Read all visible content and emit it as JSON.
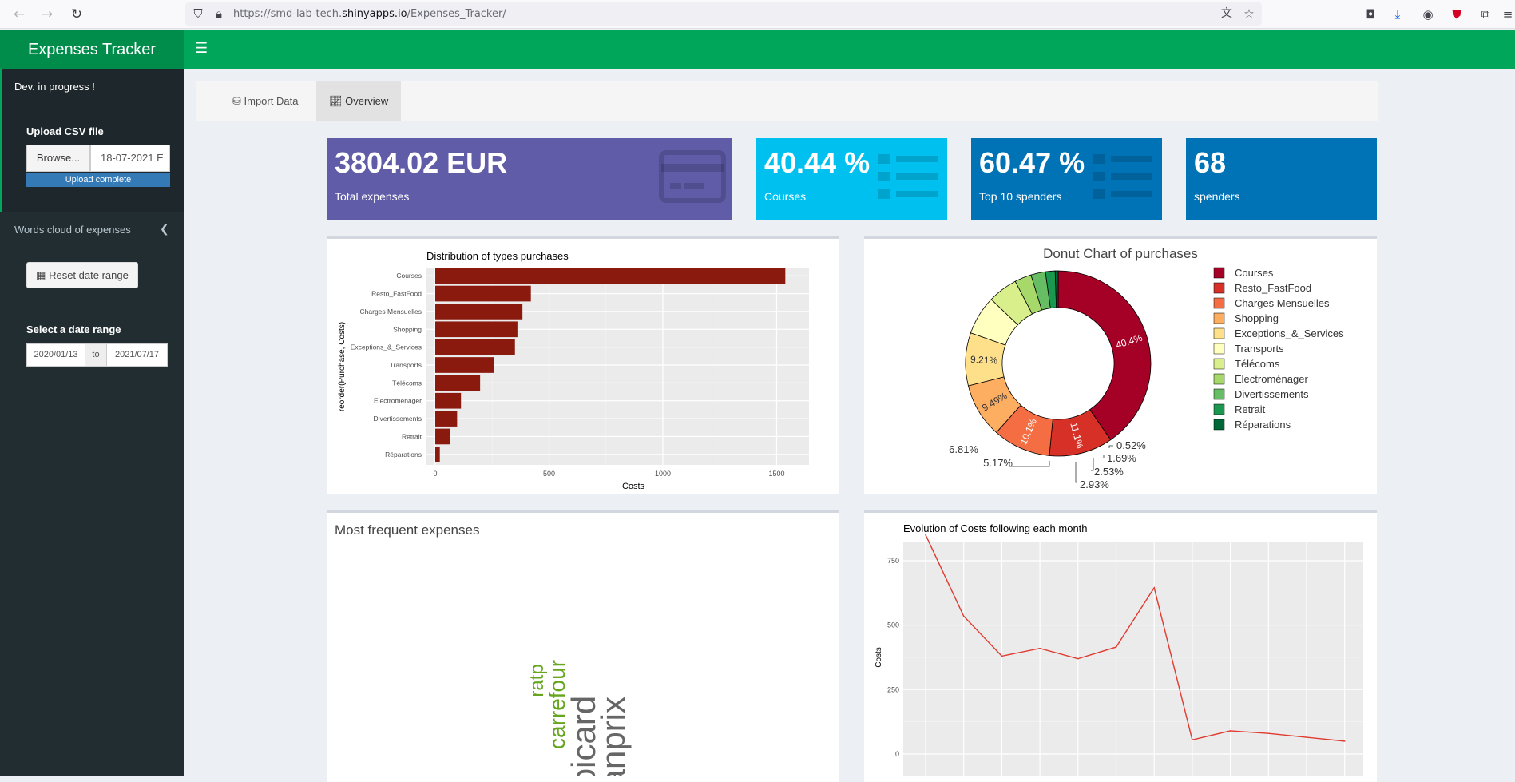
{
  "browser": {
    "url_prefix": "https://smd-lab-tech.",
    "url_domain": "shinyapps.io",
    "url_path": "/Expenses_Tracker/"
  },
  "app": {
    "title": "Expenses Tracker"
  },
  "sidebar": {
    "dev_text": "Dev. in progress !",
    "upload_label": "Upload CSV file",
    "browse_label": "Browse...",
    "file_name": "18-07-2021 E",
    "upload_status": "Upload complete",
    "wordcloud_menu": "Words cloud of expenses",
    "reset_label": "Reset date range",
    "date_range_label": "Select a date range",
    "date_start": "2020/01/13",
    "date_to": "to",
    "date_end": "2021/07/17"
  },
  "tabs": [
    {
      "label": "Import Data"
    },
    {
      "label": "Overview"
    }
  ],
  "value_boxes": [
    {
      "value": "3804.02 EUR",
      "label": "Total expenses",
      "color": "#605ca8"
    },
    {
      "value": "40.44 %",
      "label": "Courses",
      "color": "#00c0ef"
    },
    {
      "value": "60.47 %",
      "label": "Top 10 spenders",
      "color": "#0073b7"
    },
    {
      "value": "68",
      "label": "spenders",
      "color": "#0073b7"
    }
  ],
  "charts": {
    "bar": {
      "type": "bar",
      "title": "Distribution of types purchases",
      "xlabel": "Costs",
      "ylabel": "reorder(Purchase, Costs)",
      "categories": [
        "Courses",
        "Resto_FastFood",
        "Charges Mensuelles",
        "Shopping",
        "Exceptions_&_Services",
        "Transports",
        "Télécoms",
        "Electroménager",
        "Divertissements",
        "Retrait",
        "Réparations"
      ],
      "values": [
        1538,
        420,
        383,
        361,
        350,
        259,
        197,
        113,
        96,
        64,
        20
      ],
      "xlim": [
        0,
        1600
      ],
      "xticks": [
        "0",
        "500",
        "1000",
        "1500"
      ],
      "color": "#8b1a0e"
    },
    "donut": {
      "type": "pie",
      "title": "Donut Chart of purchases",
      "labels": [
        "Courses",
        "Resto_FastFood",
        "Charges Mensuelles",
        "Shopping",
        "Exceptions_&_Services",
        "Transports",
        "Télécoms",
        "Electroménager",
        "Divertissements",
        "Retrait",
        "Réparations"
      ],
      "values": [
        40.4,
        11.1,
        10.1,
        9.49,
        9.21,
        6.81,
        5.17,
        2.93,
        2.53,
        1.69,
        0.52
      ],
      "pct_labels": [
        "40.4%",
        "11.1%",
        "10.1%",
        "9.49%",
        "9.21%",
        "6.81%",
        "5.17%",
        "2.93%",
        "2.53%",
        "1.69%",
        "0.52%"
      ],
      "colors": [
        "#a50026",
        "#d73027",
        "#f46d43",
        "#fdae61",
        "#fee08b",
        "#ffffbf",
        "#d9ef8b",
        "#a6d96a",
        "#66bd63",
        "#1a9850",
        "#006837"
      ]
    },
    "wordcloud": {
      "title": "Most frequent expenses",
      "words": [
        {
          "text": "ratp",
          "color": "#66a61e"
        },
        {
          "text": "carrefour",
          "color": "#66a61e"
        },
        {
          "text": "picard",
          "color": "#666666"
        },
        {
          "text": "franprix",
          "color": "#666666"
        }
      ]
    },
    "line": {
      "type": "line",
      "title": "Evolution of Costs following each month",
      "ylabel": "Costs",
      "ylim": [
        0,
        900
      ],
      "yticks": [
        "0",
        "250",
        "500",
        "750"
      ],
      "values": [
        850,
        535,
        380,
        410,
        370,
        415,
        645,
        55,
        90,
        80,
        65,
        50
      ],
      "color": "#e03a2f"
    }
  }
}
